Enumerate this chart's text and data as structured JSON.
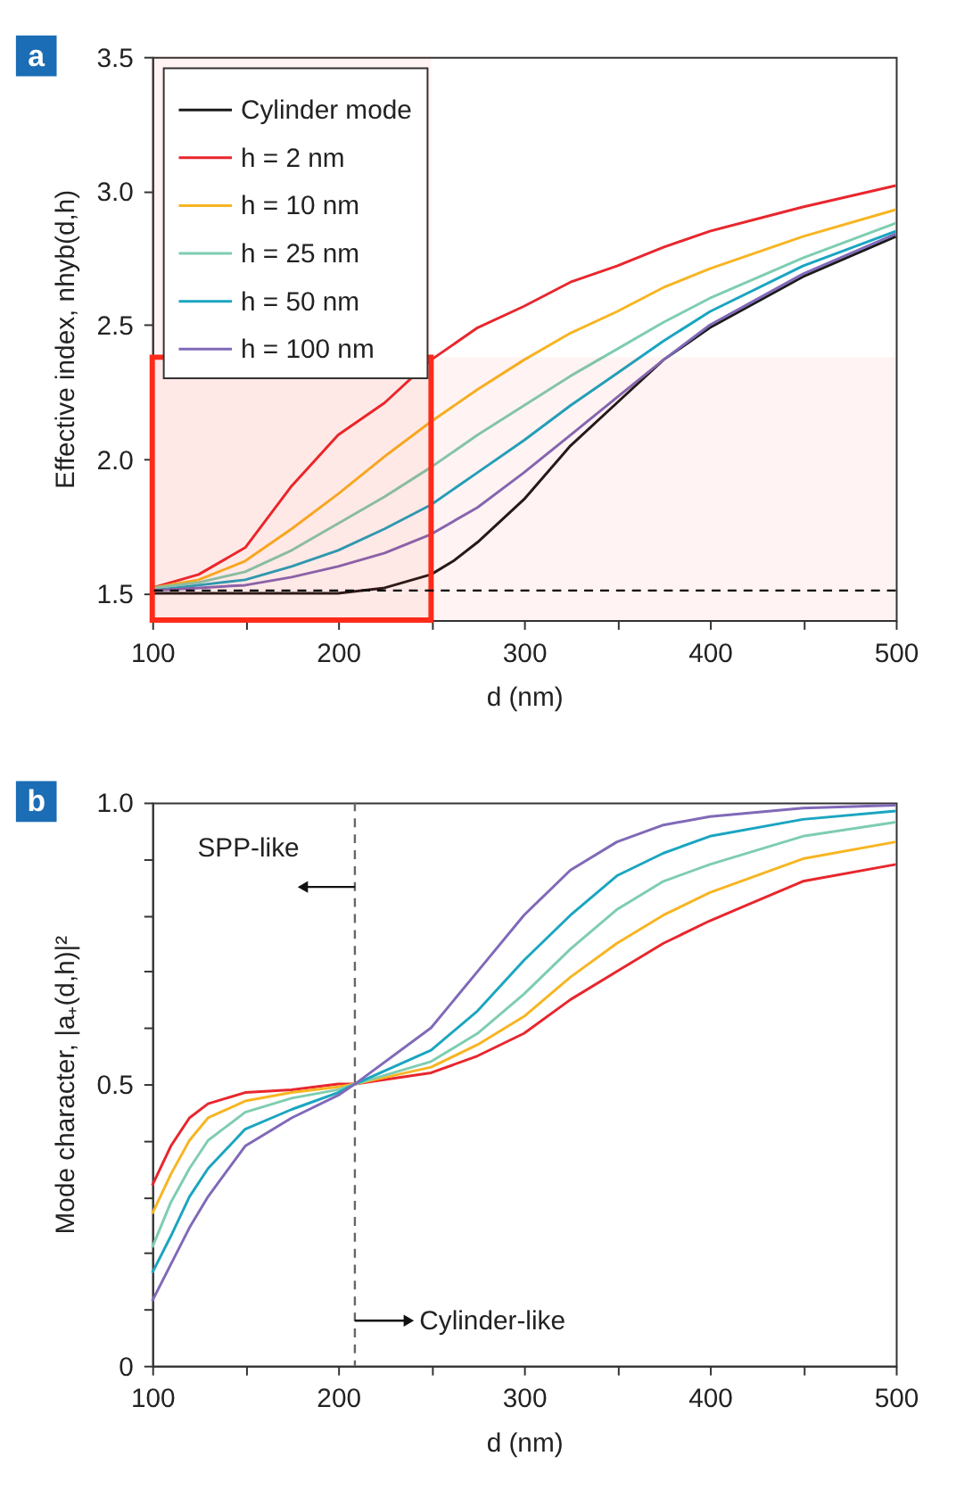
{
  "chart_data": [
    {
      "type": "line",
      "title": "a",
      "xlabel": "d (nm)",
      "ylabel": "Effective index, nhyb(d,h)",
      "x": [
        100,
        125,
        150,
        175,
        200,
        225,
        250,
        275,
        300,
        325,
        350,
        375,
        400,
        450,
        500
      ],
      "series": [
        {
          "name": "Cylinder mode",
          "color": "#1a1a1a",
          "x": [
            100,
            150,
            200,
            225,
            250,
            262,
            275,
            300,
            325,
            350,
            375,
            400,
            450,
            500
          ],
          "values": [
            1.5,
            1.5,
            1.5,
            1.52,
            1.57,
            1.62,
            1.69,
            1.85,
            2.05,
            2.21,
            2.37,
            2.49,
            2.68,
            2.83
          ]
        },
        {
          "name": "h = 2 nm",
          "color": "#e8262d",
          "values": [
            1.52,
            1.57,
            1.67,
            1.9,
            2.09,
            2.21,
            2.37,
            2.49,
            2.57,
            2.66,
            2.72,
            2.79,
            2.85,
            2.94,
            3.02
          ]
        },
        {
          "name": "h = 10 nm",
          "color": "#f7b522",
          "values": [
            1.52,
            1.55,
            1.62,
            1.74,
            1.87,
            2.01,
            2.14,
            2.26,
            2.37,
            2.47,
            2.55,
            2.64,
            2.71,
            2.83,
            2.93
          ]
        },
        {
          "name": "h = 25 nm",
          "color": "#7ecdb0",
          "values": [
            1.52,
            1.54,
            1.58,
            1.66,
            1.76,
            1.86,
            1.97,
            2.09,
            2.2,
            2.31,
            2.41,
            2.51,
            2.6,
            2.75,
            2.88
          ]
        },
        {
          "name": "h = 50 nm",
          "color": "#1aa5c0",
          "values": [
            1.51,
            1.53,
            1.55,
            1.6,
            1.66,
            1.74,
            1.83,
            1.95,
            2.07,
            2.2,
            2.32,
            2.44,
            2.55,
            2.72,
            2.85
          ]
        },
        {
          "name": "h = 100 nm",
          "color": "#8069b8",
          "values": [
            1.51,
            1.52,
            1.53,
            1.56,
            1.6,
            1.65,
            1.72,
            1.82,
            1.95,
            2.09,
            2.23,
            2.37,
            2.5,
            2.69,
            2.84
          ]
        }
      ],
      "xlim": [
        100,
        500
      ],
      "ylim": [
        1.4,
        3.5
      ],
      "xticks": [
        100,
        {
          "value": 150,
          "label": null
        },
        200,
        {
          "value": 250,
          "label": null
        },
        300,
        {
          "value": 350,
          "label": null
        },
        400,
        {
          "value": 450,
          "label": null
        },
        500
      ],
      "yticks": [
        1.5,
        {
          "value": 2,
          "label": "2.0"
        },
        2.5,
        {
          "value": 3,
          "label": "3.0"
        },
        3.5
      ],
      "ref_lines": [
        {
          "axis": "y",
          "value": 1.51,
          "color": "#000000",
          "line_style": "dashed"
        }
      ],
      "bands": [
        {
          "axis": "x",
          "from": 100,
          "to": 250,
          "color": "#ff2a1a"
        },
        {
          "axis": "y",
          "from": 1.4,
          "to": 2.38,
          "color": "#ff2a1a"
        }
      ],
      "legend": "top left",
      "grid": false,
      "marker": "none",
      "line_style": "solid"
    },
    {
      "type": "line",
      "title": "b",
      "xlabel": "d (nm)",
      "ylabel": "Mode character, |a₊(d,h)|²",
      "x": [
        100,
        110,
        120,
        130,
        150,
        175,
        200,
        209,
        250,
        275,
        300,
        325,
        350,
        375,
        400,
        450,
        500
      ],
      "series": [
        {
          "color": "#e8262d",
          "values": [
            0.32,
            0.39,
            0.44,
            0.465,
            0.485,
            0.49,
            0.5,
            0.5,
            0.52,
            0.55,
            0.59,
            0.65,
            0.7,
            0.75,
            0.79,
            0.86,
            0.89
          ]
        },
        {
          "color": "#f7b522",
          "values": [
            0.27,
            0.34,
            0.4,
            0.44,
            0.47,
            0.485,
            0.495,
            0.5,
            0.53,
            0.57,
            0.62,
            0.69,
            0.75,
            0.8,
            0.84,
            0.9,
            0.93
          ]
        },
        {
          "color": "#7ecdb0",
          "values": [
            0.21,
            0.29,
            0.35,
            0.4,
            0.45,
            0.475,
            0.49,
            0.5,
            0.54,
            0.59,
            0.66,
            0.74,
            0.81,
            0.86,
            0.89,
            0.94,
            0.965
          ]
        },
        {
          "color": "#1aa5c0",
          "values": [
            0.165,
            0.23,
            0.3,
            0.35,
            0.42,
            0.455,
            0.485,
            0.5,
            0.56,
            0.63,
            0.72,
            0.8,
            0.87,
            0.91,
            0.94,
            0.97,
            0.985
          ]
        },
        {
          "color": "#8069b8",
          "values": [
            0.115,
            0.18,
            0.245,
            0.3,
            0.39,
            0.44,
            0.48,
            0.5,
            0.6,
            0.7,
            0.8,
            0.88,
            0.93,
            0.96,
            0.975,
            0.99,
            0.995
          ]
        }
      ],
      "xlim": [
        100,
        500
      ],
      "ylim": [
        0,
        1
      ],
      "xticks": [
        100,
        {
          "value": 150,
          "label": null
        },
        200,
        {
          "value": 250,
          "label": null
        },
        300,
        {
          "value": 350,
          "label": null
        },
        400,
        {
          "value": 450,
          "label": null
        },
        500
      ],
      "yticks": [
        0,
        {
          "value": 0.1,
          "label": null
        },
        {
          "value": 0.2,
          "label": null
        },
        {
          "value": 0.3,
          "label": null
        },
        {
          "value": 0.4,
          "label": null
        },
        0.5,
        {
          "value": 0.6,
          "label": null
        },
        {
          "value": 0.7,
          "label": null
        },
        {
          "value": 0.8,
          "label": null
        },
        {
          "value": 0.9,
          "label": null
        },
        {
          "value": 1,
          "label": "1.0"
        }
      ],
      "ref_lines": [
        {
          "axis": "x",
          "value": 209,
          "color": "#666666",
          "line_style": "dashed"
        }
      ],
      "annotations": [
        {
          "text": "SPP-like",
          "x": 181,
          "y": 0.85
        },
        {
          "text": "Cylinder-like",
          "x": 238,
          "y": 0.08
        }
      ],
      "legend": false,
      "grid": false,
      "marker": "none",
      "line_style": "solid"
    }
  ]
}
